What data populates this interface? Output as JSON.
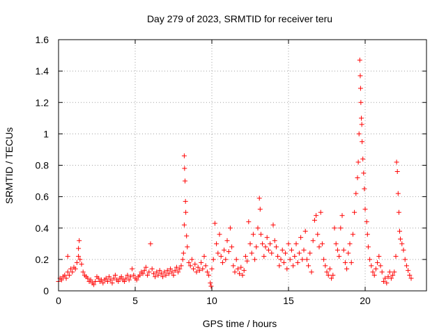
{
  "chart_data": {
    "type": "scatter",
    "title": "Day 279 of 2023, SRMTID for receiver teru",
    "xlabel": "GPS time / hours",
    "ylabel": "SRMTID / TECUs",
    "xlim": [
      0,
      24
    ],
    "ylim": [
      0,
      1.6
    ],
    "xticks": [
      0,
      5,
      10,
      15,
      20
    ],
    "yticks": [
      0,
      0.2,
      0.4,
      0.6,
      0.8,
      1,
      1.2,
      1.4,
      1.6
    ],
    "xtick_labels": [
      "0",
      "5",
      "10",
      "15",
      "20"
    ],
    "ytick_labels": [
      "0",
      "0.2",
      "0.4",
      "0.6",
      "0.8",
      "1",
      "1.2",
      "1.4",
      "1.6"
    ],
    "grid": true,
    "marker": "+",
    "color": "#ff0000",
    "series": [
      {
        "name": "SRMTID",
        "points": [
          [
            0.0,
            0.06
          ],
          [
            0.1,
            0.08
          ],
          [
            0.2,
            0.07
          ],
          [
            0.3,
            0.09
          ],
          [
            0.4,
            0.1
          ],
          [
            0.5,
            0.08
          ],
          [
            0.6,
            0.12
          ],
          [
            0.6,
            0.22
          ],
          [
            0.7,
            0.1
          ],
          [
            0.8,
            0.14
          ],
          [
            0.9,
            0.12
          ],
          [
            1.0,
            0.15
          ],
          [
            1.1,
            0.14
          ],
          [
            1.2,
            0.18
          ],
          [
            1.3,
            0.22
          ],
          [
            1.3,
            0.27
          ],
          [
            1.35,
            0.32
          ],
          [
            1.4,
            0.2
          ],
          [
            1.5,
            0.17
          ],
          [
            1.6,
            0.12
          ],
          [
            1.7,
            0.1
          ],
          [
            1.8,
            0.09
          ],
          [
            1.9,
            0.08
          ],
          [
            2.0,
            0.06
          ],
          [
            2.1,
            0.07
          ],
          [
            2.2,
            0.05
          ],
          [
            2.3,
            0.04
          ],
          [
            2.4,
            0.06
          ],
          [
            2.5,
            0.09
          ],
          [
            2.6,
            0.08
          ],
          [
            2.7,
            0.06
          ],
          [
            2.8,
            0.07
          ],
          [
            2.9,
            0.05
          ],
          [
            3.0,
            0.07
          ],
          [
            3.1,
            0.08
          ],
          [
            3.2,
            0.06
          ],
          [
            3.3,
            0.09
          ],
          [
            3.4,
            0.07
          ],
          [
            3.5,
            0.05
          ],
          [
            3.6,
            0.08
          ],
          [
            3.7,
            0.1
          ],
          [
            3.8,
            0.07
          ],
          [
            3.9,
            0.06
          ],
          [
            4.0,
            0.08
          ],
          [
            4.1,
            0.09
          ],
          [
            4.2,
            0.07
          ],
          [
            4.3,
            0.06
          ],
          [
            4.4,
            0.08
          ],
          [
            4.5,
            0.1
          ],
          [
            4.6,
            0.07
          ],
          [
            4.7,
            0.09
          ],
          [
            4.8,
            0.14
          ],
          [
            4.9,
            0.1
          ],
          [
            5.0,
            0.08
          ],
          [
            5.1,
            0.07
          ],
          [
            5.2,
            0.09
          ],
          [
            5.3,
            0.1
          ],
          [
            5.4,
            0.12
          ],
          [
            5.5,
            0.11
          ],
          [
            5.6,
            0.13
          ],
          [
            5.7,
            0.15
          ],
          [
            5.8,
            0.1
          ],
          [
            5.9,
            0.12
          ],
          [
            6.0,
            0.3
          ],
          [
            6.1,
            0.14
          ],
          [
            6.2,
            0.11
          ],
          [
            6.3,
            0.09
          ],
          [
            6.4,
            0.12
          ],
          [
            6.5,
            0.1
          ],
          [
            6.6,
            0.13
          ],
          [
            6.7,
            0.11
          ],
          [
            6.8,
            0.09
          ],
          [
            6.9,
            0.12
          ],
          [
            7.0,
            0.1
          ],
          [
            7.1,
            0.13
          ],
          [
            7.2,
            0.11
          ],
          [
            7.3,
            0.14
          ],
          [
            7.4,
            0.12
          ],
          [
            7.5,
            0.1
          ],
          [
            7.6,
            0.13
          ],
          [
            7.7,
            0.15
          ],
          [
            7.8,
            0.12
          ],
          [
            7.9,
            0.14
          ],
          [
            8.0,
            0.16
          ],
          [
            8.1,
            0.2
          ],
          [
            8.15,
            0.24
          ],
          [
            8.2,
            0.42
          ],
          [
            8.2,
            0.86
          ],
          [
            8.22,
            0.78
          ],
          [
            8.25,
            0.7
          ],
          [
            8.28,
            0.57
          ],
          [
            8.3,
            0.5
          ],
          [
            8.35,
            0.35
          ],
          [
            8.4,
            0.28
          ],
          [
            8.5,
            0.18
          ],
          [
            8.6,
            0.16
          ],
          [
            8.7,
            0.2
          ],
          [
            8.8,
            0.14
          ],
          [
            8.9,
            0.17
          ],
          [
            9.0,
            0.12
          ],
          [
            9.1,
            0.15
          ],
          [
            9.2,
            0.13
          ],
          [
            9.3,
            0.18
          ],
          [
            9.4,
            0.14
          ],
          [
            9.5,
            0.22
          ],
          [
            9.6,
            0.16
          ],
          [
            9.7,
            0.12
          ],
          [
            9.8,
            0.1
          ],
          [
            9.9,
            0.05
          ],
          [
            9.95,
            0.03
          ],
          [
            10.0,
            0.14
          ],
          [
            10.1,
            0.2
          ],
          [
            10.2,
            0.43
          ],
          [
            10.3,
            0.3
          ],
          [
            10.4,
            0.24
          ],
          [
            10.5,
            0.36
          ],
          [
            10.6,
            0.22
          ],
          [
            10.7,
            0.18
          ],
          [
            10.8,
            0.26
          ],
          [
            10.9,
            0.2
          ],
          [
            11.0,
            0.32
          ],
          [
            11.1,
            0.25
          ],
          [
            11.2,
            0.4
          ],
          [
            11.3,
            0.28
          ],
          [
            11.4,
            0.16
          ],
          [
            11.5,
            0.12
          ],
          [
            11.6,
            0.2
          ],
          [
            11.7,
            0.14
          ],
          [
            11.8,
            0.11
          ],
          [
            11.9,
            0.15
          ],
          [
            12.0,
            0.1
          ],
          [
            12.1,
            0.13
          ],
          [
            12.2,
            0.22
          ],
          [
            12.3,
            0.19
          ],
          [
            12.4,
            0.44
          ],
          [
            12.5,
            0.3
          ],
          [
            12.6,
            0.24
          ],
          [
            12.7,
            0.36
          ],
          [
            12.8,
            0.2
          ],
          [
            12.9,
            0.28
          ],
          [
            13.0,
            0.4
          ],
          [
            13.1,
            0.59
          ],
          [
            13.15,
            0.52
          ],
          [
            13.2,
            0.36
          ],
          [
            13.3,
            0.3
          ],
          [
            13.4,
            0.22
          ],
          [
            13.5,
            0.28
          ],
          [
            13.6,
            0.34
          ],
          [
            13.7,
            0.26
          ],
          [
            13.8,
            0.3
          ],
          [
            13.9,
            0.24
          ],
          [
            14.0,
            0.42
          ],
          [
            14.1,
            0.32
          ],
          [
            14.2,
            0.28
          ],
          [
            14.3,
            0.22
          ],
          [
            14.4,
            0.16
          ],
          [
            14.5,
            0.2
          ],
          [
            14.6,
            0.26
          ],
          [
            14.7,
            0.18
          ],
          [
            14.8,
            0.24
          ],
          [
            14.9,
            0.14
          ],
          [
            15.0,
            0.3
          ],
          [
            15.1,
            0.2
          ],
          [
            15.2,
            0.26
          ],
          [
            15.3,
            0.16
          ],
          [
            15.4,
            0.22
          ],
          [
            15.5,
            0.3
          ],
          [
            15.6,
            0.18
          ],
          [
            15.7,
            0.24
          ],
          [
            15.8,
            0.34
          ],
          [
            15.9,
            0.2
          ],
          [
            16.0,
            0.26
          ],
          [
            16.1,
            0.38
          ],
          [
            16.2,
            0.2
          ],
          [
            16.3,
            0.16
          ],
          [
            16.4,
            0.24
          ],
          [
            16.5,
            0.12
          ],
          [
            16.6,
            0.32
          ],
          [
            16.7,
            0.45
          ],
          [
            16.8,
            0.48
          ],
          [
            16.9,
            0.36
          ],
          [
            17.0,
            0.28
          ],
          [
            17.1,
            0.5
          ],
          [
            17.2,
            0.3
          ],
          [
            17.3,
            0.2
          ],
          [
            17.4,
            0.16
          ],
          [
            17.5,
            0.12
          ],
          [
            17.6,
            0.1
          ],
          [
            17.7,
            0.14
          ],
          [
            17.8,
            0.08
          ],
          [
            17.9,
            0.1
          ],
          [
            18.0,
            0.4
          ],
          [
            18.1,
            0.3
          ],
          [
            18.2,
            0.26
          ],
          [
            18.3,
            0.22
          ],
          [
            18.4,
            0.4
          ],
          [
            18.5,
            0.48
          ],
          [
            18.6,
            0.26
          ],
          [
            18.7,
            0.18
          ],
          [
            18.8,
            0.14
          ],
          [
            18.9,
            0.24
          ],
          [
            19.0,
            0.3
          ],
          [
            19.1,
            0.18
          ],
          [
            19.2,
            0.36
          ],
          [
            19.3,
            0.5
          ],
          [
            19.4,
            0.62
          ],
          [
            19.5,
            0.72
          ],
          [
            19.55,
            0.82
          ],
          [
            19.6,
            1.0
          ],
          [
            19.65,
            1.47
          ],
          [
            19.68,
            1.37
          ],
          [
            19.7,
            1.29
          ],
          [
            19.72,
            1.2
          ],
          [
            19.75,
            1.1
          ],
          [
            19.78,
            1.06
          ],
          [
            19.8,
            0.95
          ],
          [
            19.85,
            0.84
          ],
          [
            19.9,
            0.75
          ],
          [
            19.95,
            0.65
          ],
          [
            20.0,
            0.52
          ],
          [
            20.1,
            0.44
          ],
          [
            20.15,
            0.36
          ],
          [
            20.2,
            0.28
          ],
          [
            20.3,
            0.2
          ],
          [
            20.4,
            0.16
          ],
          [
            20.5,
            0.12
          ],
          [
            20.6,
            0.1
          ],
          [
            20.7,
            0.14
          ],
          [
            20.8,
            0.18
          ],
          [
            20.9,
            0.22
          ],
          [
            21.0,
            0.16
          ],
          [
            21.1,
            0.12
          ],
          [
            21.2,
            0.06
          ],
          [
            21.3,
            0.08
          ],
          [
            21.4,
            0.05
          ],
          [
            21.5,
            0.09
          ],
          [
            21.6,
            0.12
          ],
          [
            21.7,
            0.08
          ],
          [
            21.8,
            0.1
          ],
          [
            21.9,
            0.12
          ],
          [
            22.0,
            0.22
          ],
          [
            22.05,
            0.82
          ],
          [
            22.1,
            0.76
          ],
          [
            22.15,
            0.62
          ],
          [
            22.2,
            0.5
          ],
          [
            22.25,
            0.38
          ],
          [
            22.3,
            0.33
          ],
          [
            22.4,
            0.3
          ],
          [
            22.5,
            0.26
          ],
          [
            22.6,
            0.2
          ],
          [
            22.7,
            0.16
          ],
          [
            22.8,
            0.13
          ],
          [
            22.9,
            0.1
          ],
          [
            23.0,
            0.08
          ]
        ]
      }
    ]
  }
}
